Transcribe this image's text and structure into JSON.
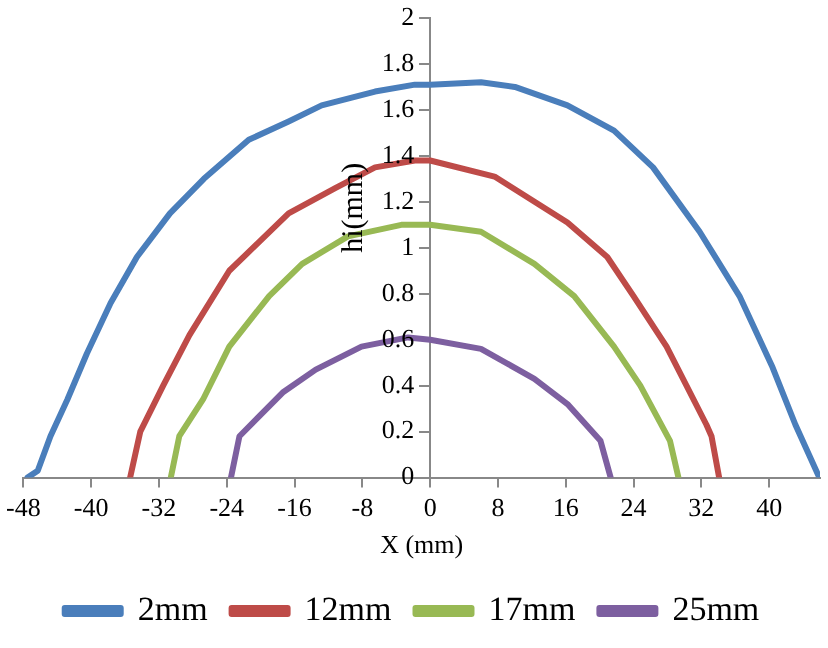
{
  "chart_data": {
    "type": "line",
    "xlabel": "X (mm)",
    "ylabel": "hi(mm)",
    "xlim": [
      -48,
      46
    ],
    "xticks": [
      -48,
      -40,
      -32,
      -24,
      -16,
      -8,
      0,
      8,
      16,
      24,
      32,
      40
    ],
    "ylim": [
      0,
      2
    ],
    "yticks": [
      0,
      0.2,
      0.4,
      0.6,
      0.8,
      1,
      1.2,
      1.4,
      1.6,
      1.8,
      2
    ],
    "grid": false,
    "legend": "bottom",
    "marker": "none",
    "line_style": "solid",
    "series": [
      {
        "name": "2mm",
        "color": "#4a7ebb",
        "x": [
          -47.5,
          -46.3,
          -44.8,
          -42.8,
          -40.5,
          -37.7,
          -34.6,
          -30.7,
          -26.7,
          -21.4,
          -16.7,
          -12.8,
          -6.5,
          -1.8,
          0,
          6,
          10,
          16.2,
          21.7,
          26.3,
          31.8,
          36.5,
          40.4,
          43.1,
          45.8
        ],
        "values": [
          0,
          0.03,
          0.18,
          0.34,
          0.54,
          0.76,
          0.96,
          1.15,
          1.3,
          1.47,
          1.55,
          1.62,
          1.68,
          1.71,
          1.71,
          1.72,
          1.7,
          1.62,
          1.51,
          1.35,
          1.07,
          0.79,
          0.48,
          0.23,
          0.01
        ]
      },
      {
        "name": "12mm",
        "color": "#be4b48",
        "x": [
          -35.4,
          -34.2,
          -31.5,
          -28.4,
          -23.7,
          -16.7,
          -11.2,
          -6.5,
          -1.8,
          0,
          7.6,
          16.2,
          20.9,
          24,
          27.9,
          32.6,
          33.2,
          34.1
        ],
        "values": [
          0,
          0.2,
          0.4,
          0.62,
          0.9,
          1.15,
          1.26,
          1.35,
          1.38,
          1.38,
          1.31,
          1.11,
          0.96,
          0.79,
          0.57,
          0.23,
          0.18,
          0
        ]
      },
      {
        "name": "17mm",
        "color": "#98b954",
        "x": [
          -30.6,
          -29.6,
          -26.8,
          -23.7,
          -19,
          -15.1,
          -9.7,
          -3.4,
          0,
          6,
          12.3,
          17,
          21.7,
          24.8,
          28.3,
          29.3
        ],
        "values": [
          0,
          0.18,
          0.34,
          0.57,
          0.79,
          0.93,
          1.05,
          1.1,
          1.1,
          1.07,
          0.93,
          0.79,
          0.57,
          0.4,
          0.16,
          0
        ]
      },
      {
        "name": "25mm",
        "color": "#7d5fa0",
        "x": [
          -23.5,
          -22.5,
          -17.4,
          -13.5,
          -8.1,
          -2.6,
          0,
          6,
          12.3,
          16.2,
          20.1,
          21.3
        ],
        "values": [
          0,
          0.18,
          0.37,
          0.47,
          0.57,
          0.61,
          0.6,
          0.56,
          0.43,
          0.32,
          0.16,
          0
        ]
      }
    ]
  }
}
